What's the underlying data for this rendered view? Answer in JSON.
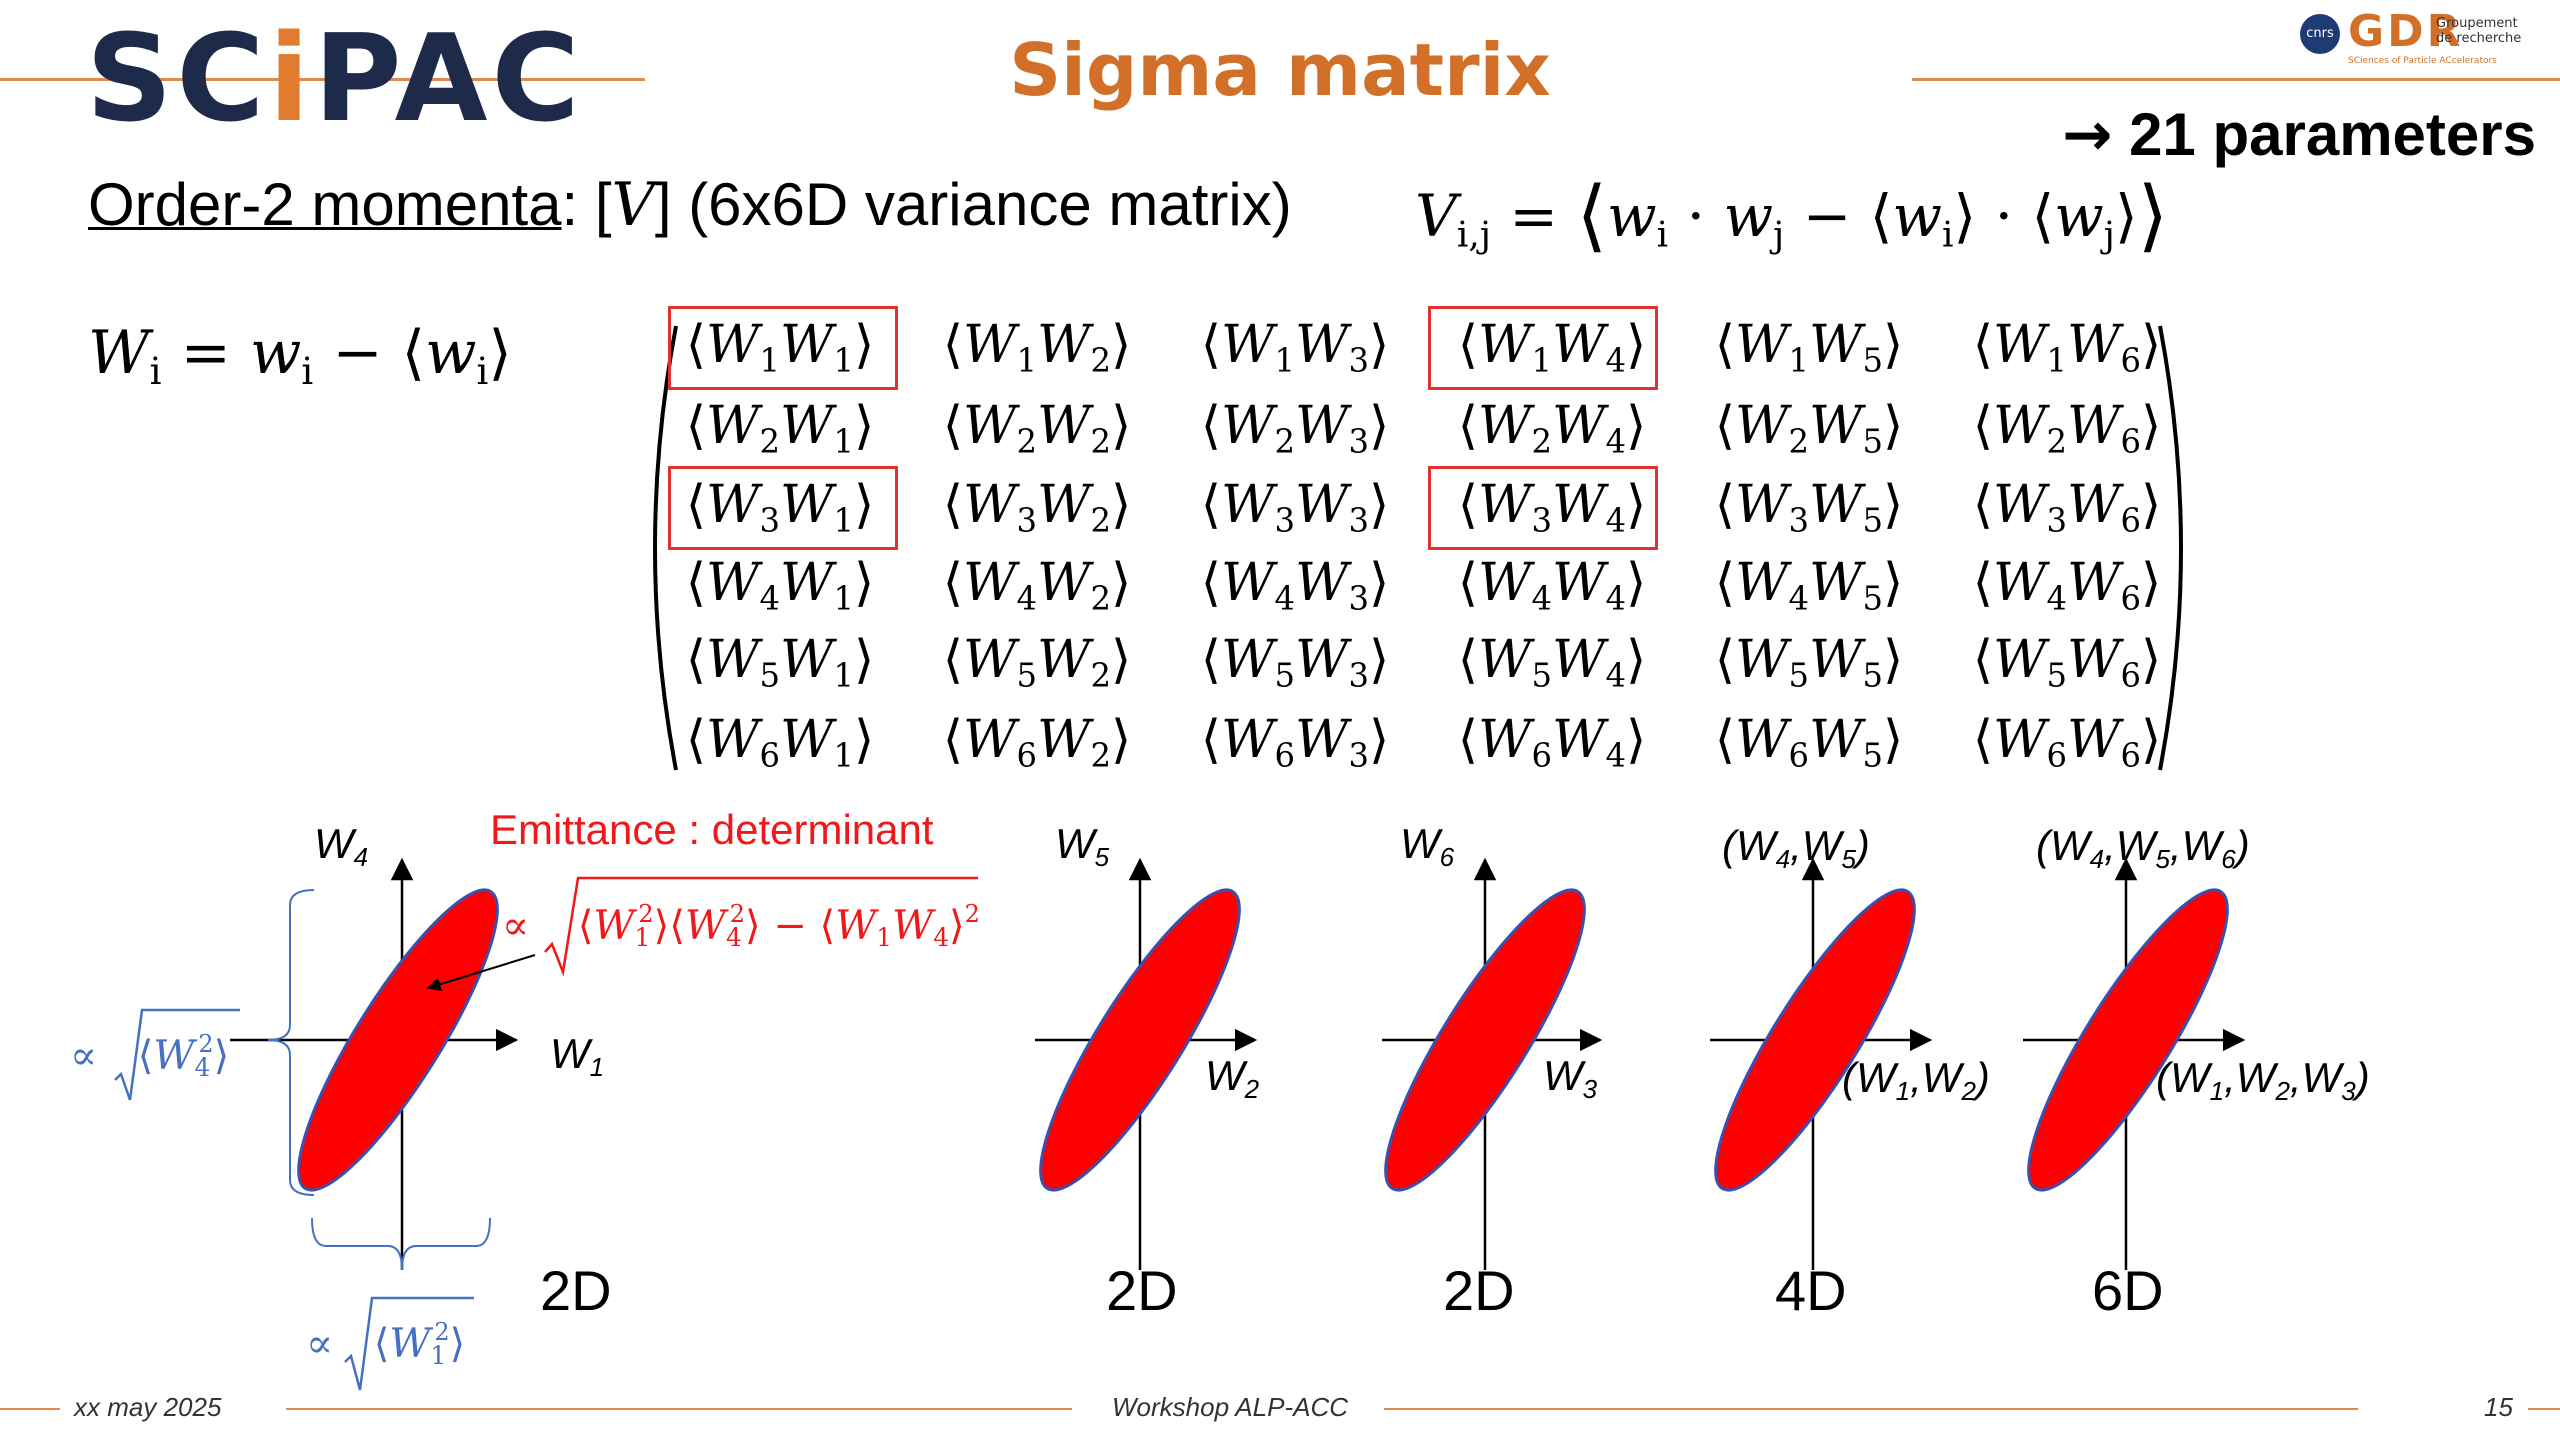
{
  "header": {
    "logo_text_a": "SC",
    "logo_text_b": "i",
    "logo_text_c": "PAC",
    "title": "Sigma matrix",
    "gdr_logo": {
      "cnrs": "cnrs",
      "big": "GDR",
      "small_1": "Groupement",
      "small_2": "de recherche",
      "sub": "SCiences of Particle ACcelerators"
    }
  },
  "params_note": {
    "arrow": "→",
    "text": "21 parameters"
  },
  "order_line": {
    "underlined": "Order-2 momenta",
    "rest_1": ": [",
    "V": "V",
    "rest_2": "] (6x6D variance matrix)"
  },
  "matrix": {
    "rows": [
      [
        "1",
        "1"
      ],
      [
        "1",
        "2"
      ],
      [
        "1",
        "3"
      ],
      [
        "1",
        "4"
      ],
      [
        "1",
        "5"
      ],
      [
        "1",
        "6"
      ]
    ],
    "highlighted": [
      "1-1",
      "1-4",
      "3-1",
      "3-4"
    ]
  },
  "emittance_label": "Emittance : determinant",
  "plots": [
    {
      "y_label": "W",
      "y_sub": "4",
      "x_label": "W",
      "x_sub": "1",
      "dim": "2D"
    },
    {
      "y_label": "W",
      "y_sub": "5",
      "x_label": "W",
      "x_sub": "2",
      "dim": "2D"
    },
    {
      "y_label": "W",
      "y_sub": "6",
      "x_label": "W",
      "x_sub": "3",
      "dim": "2D"
    },
    {
      "y_label": "(W4,W5)",
      "x_label": "(W1,W2)",
      "dim": "4D"
    },
    {
      "y_label": "(W4,W5,W6)",
      "x_label": "(W1,W2,W3)",
      "dim": "6D"
    }
  ],
  "colors": {
    "ellipse": "#ff0000",
    "ellipse_edge": "#3a50b0",
    "accent": "#d2702a",
    "box": "#e03030",
    "blue_annot": "#4670c0"
  },
  "footer": {
    "date": "xx may 2025",
    "event": "Workshop ALP-ACC",
    "page": "15"
  }
}
